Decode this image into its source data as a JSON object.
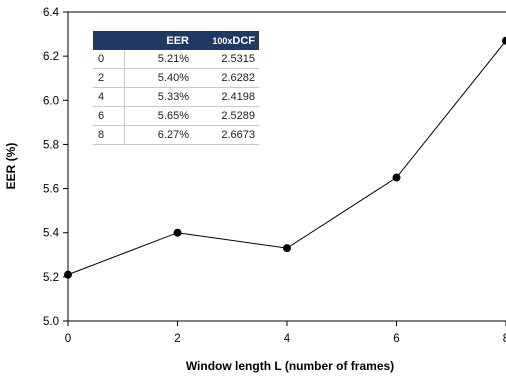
{
  "chart_data": {
    "type": "line",
    "xlabel": "Window length L (number of frames)",
    "ylabel": "EER (%)",
    "xlim": [
      0,
      8
    ],
    "ylim": [
      5.0,
      6.4
    ],
    "x_ticks": [
      "0",
      "2",
      "4",
      "6",
      "8"
    ],
    "y_ticks": [
      "5.0",
      "5.2",
      "5.4",
      "5.6",
      "5.8",
      "6.0",
      "6.2",
      "6.4"
    ],
    "grid": false,
    "series": [
      {
        "x": [
          0,
          2,
          4,
          6,
          8
        ],
        "values": [
          5.21,
          5.4,
          5.33,
          5.65,
          6.27
        ]
      }
    ],
    "inset_table": {
      "headers": [
        "",
        "EER",
        "100x",
        "DCF"
      ],
      "rows": [
        [
          "0",
          "5.21%",
          "2.5315"
        ],
        [
          "2",
          "5.40%",
          "2.6282"
        ],
        [
          "4",
          "5.33%",
          "2.4198"
        ],
        [
          "6",
          "5.65%",
          "2.5289"
        ],
        [
          "8",
          "6.27%",
          "2.6673"
        ]
      ]
    }
  }
}
